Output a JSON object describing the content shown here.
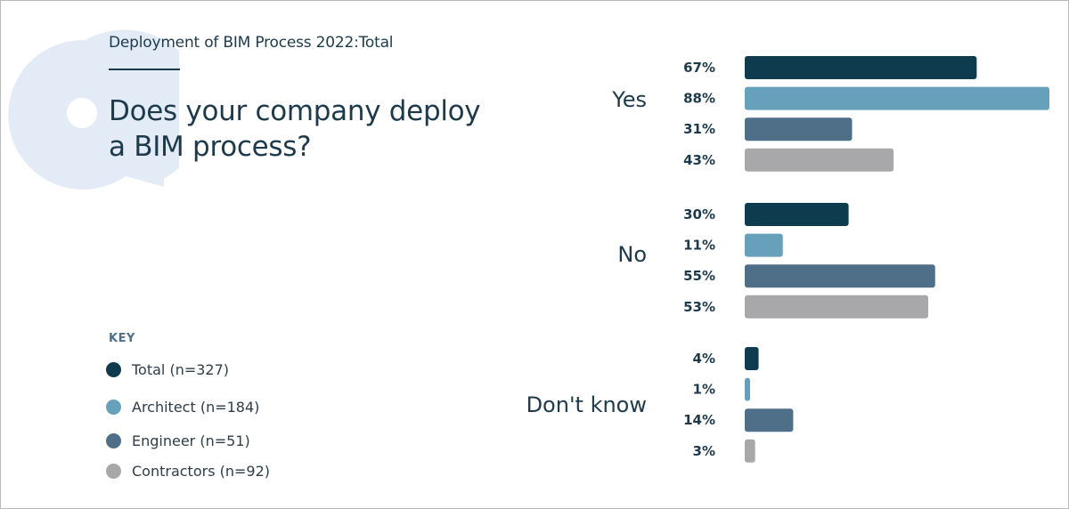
{
  "header": {
    "subtitle": "Deployment of BIM Process 2022:Total",
    "question": "Does your company deploy a BIM process?"
  },
  "legend": {
    "title": "KEY",
    "items": [
      {
        "label": "Total (n=327)",
        "color": "#0e3b4d"
      },
      {
        "label": "Architect (n=184)",
        "color": "#66a0bb"
      },
      {
        "label": "Engineer (n=51)",
        "color": "#4f6f89"
      },
      {
        "label": "Contractors (n=92)",
        "color": "#a8a8aa"
      }
    ]
  },
  "decor": {
    "q_mark_color": "#e3ecf6"
  },
  "chart_data": {
    "type": "bar",
    "orientation": "horizontal",
    "categories": [
      "Yes",
      "No",
      "Don't know"
    ],
    "series": [
      {
        "name": "Total (n=327)",
        "color": "#0e3b4d",
        "values": [
          67,
          30,
          4
        ]
      },
      {
        "name": "Architect (n=184)",
        "color": "#66a0bb",
        "values": [
          88,
          11,
          1
        ]
      },
      {
        "name": "Engineer (n=51)",
        "color": "#4f6f89",
        "values": [
          31,
          55,
          14
        ]
      },
      {
        "name": "Contractors (n=92)",
        "color": "#a8a8aa",
        "values": [
          43,
          53,
          3
        ]
      }
    ],
    "value_suffix": "%",
    "xlim": [
      0,
      88
    ],
    "grid": false,
    "axes_visible": false
  }
}
